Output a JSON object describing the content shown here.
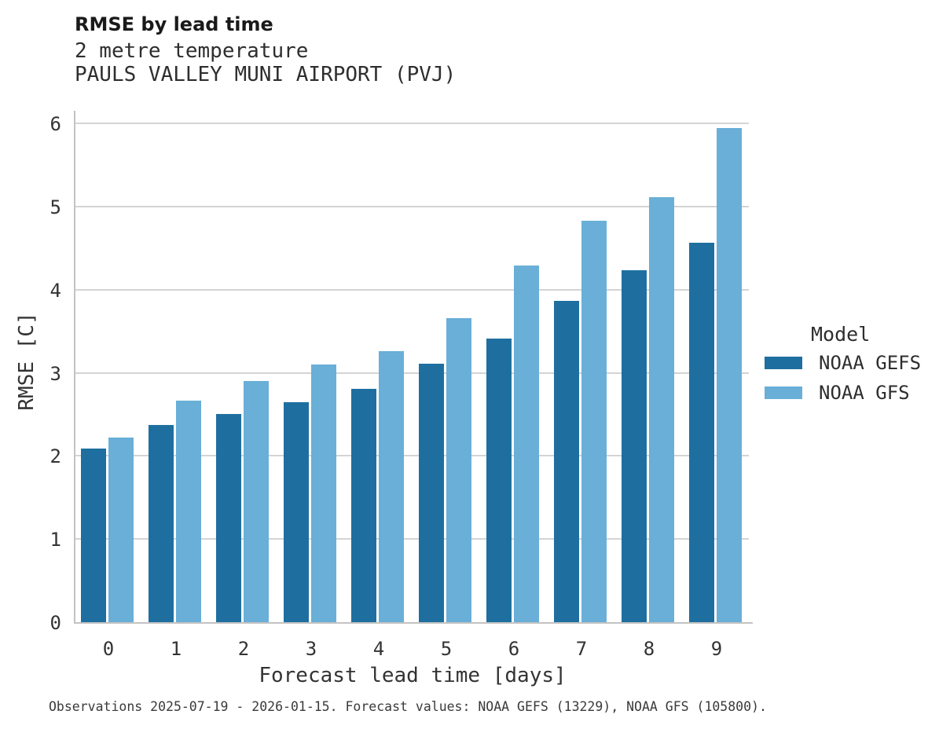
{
  "header": {
    "title": "RMSE by lead time",
    "subtitle1": "2 metre temperature",
    "subtitle2": "PAULS VALLEY MUNI AIRPORT (PVJ)"
  },
  "chart_data": {
    "type": "bar",
    "title": "RMSE by lead time",
    "subtitle": [
      "2 metre temperature",
      "PAULS VALLEY MUNI AIRPORT (PVJ)"
    ],
    "categories": [
      "0",
      "1",
      "2",
      "3",
      "4",
      "5",
      "6",
      "7",
      "8",
      "9"
    ],
    "series": [
      {
        "name": "NOAA GEFS",
        "color": "#1e6fa0",
        "values": [
          2.09,
          2.37,
          2.51,
          2.65,
          2.81,
          3.11,
          3.41,
          3.87,
          4.24,
          4.57
        ]
      },
      {
        "name": "NOAA GFS",
        "color": "#69afd7",
        "values": [
          2.22,
          2.67,
          2.9,
          3.1,
          3.26,
          3.66,
          4.29,
          4.83,
          5.12,
          5.95
        ]
      }
    ],
    "xlabel": "Forecast lead time [days]",
    "ylabel": "RMSE [C]",
    "ylim": [
      0,
      6
    ],
    "yticks": [
      "0",
      "1",
      "2",
      "3",
      "4",
      "5",
      "6"
    ],
    "grid": "horizontal-only",
    "legend_position": "right-outside"
  },
  "legend": {
    "title": "Model"
  },
  "footer": {
    "text": "Observations 2025-07-19 - 2026-01-15. Forecast values: NOAA GEFS (13229), NOAA GFS (105800)."
  },
  "colors": {
    "gefs_bar": "#1e6fa0",
    "gfs_bar": "#69afd7",
    "gridline": "#d4d4d4",
    "spine": "#c3c3c3",
    "text": "#333333"
  }
}
